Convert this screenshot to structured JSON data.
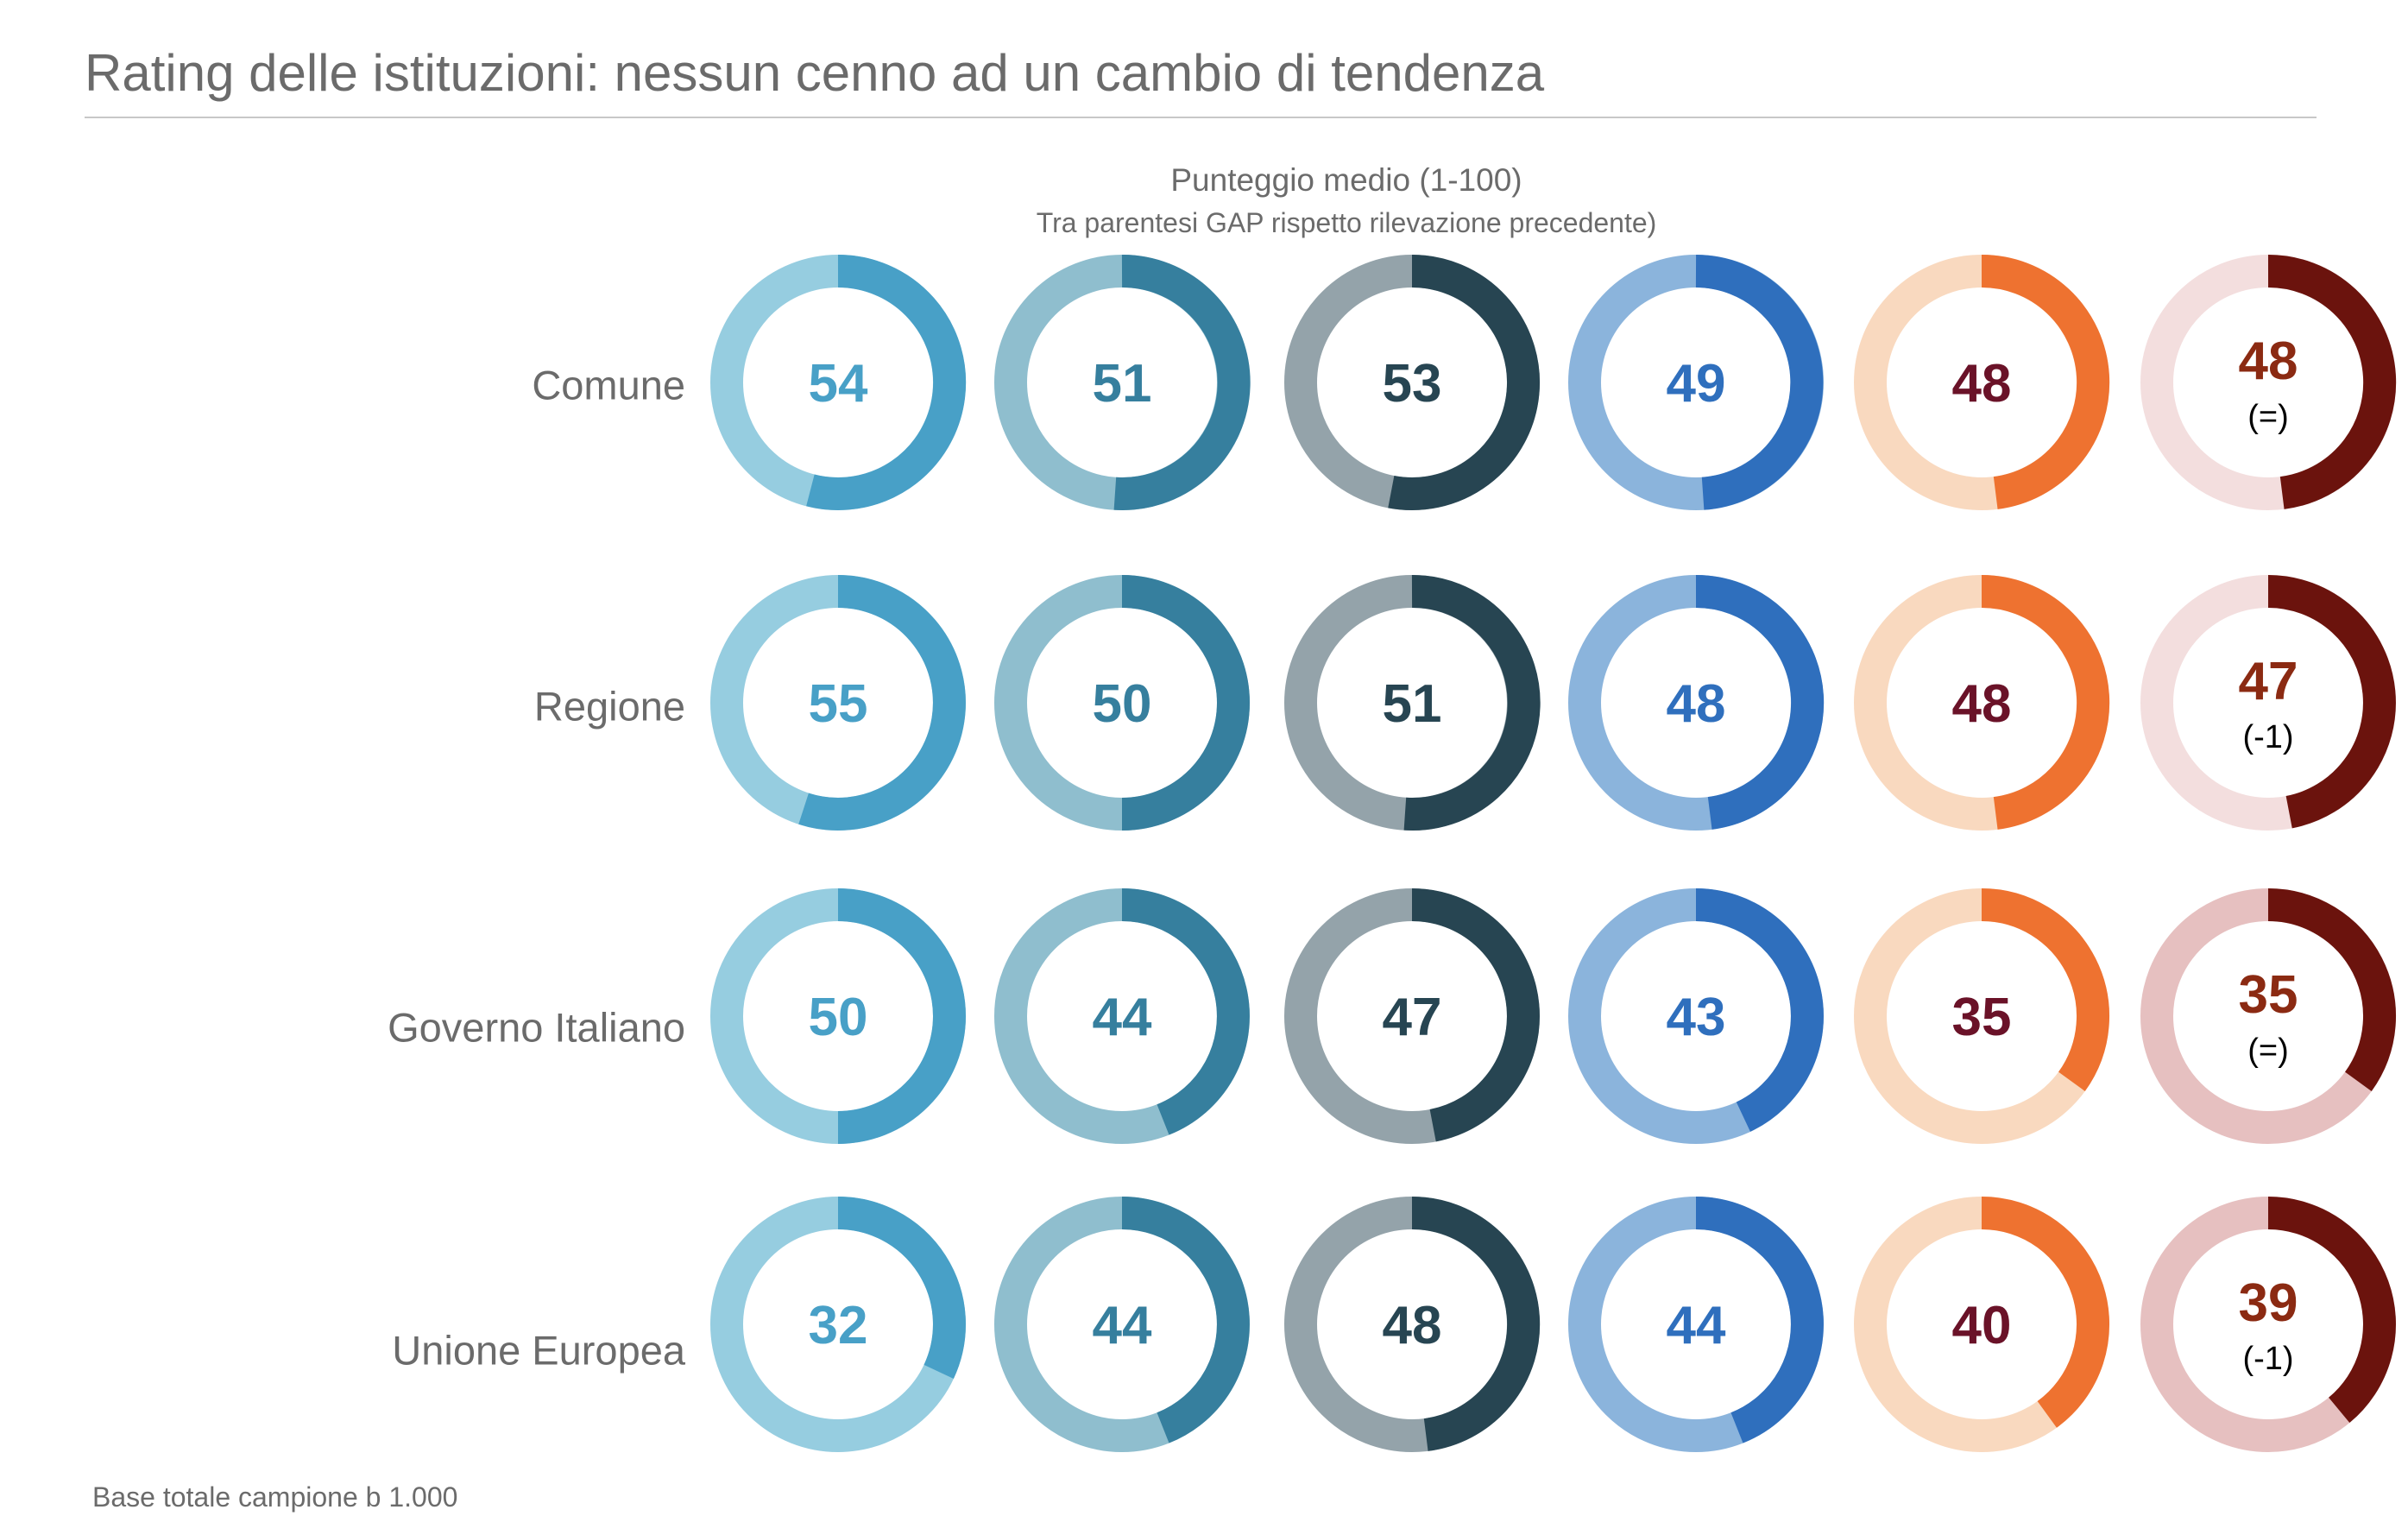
{
  "title": "Rating delle istituzioni: nessun cenno ad un cambio di tendenza",
  "subtitle": "Punteggio  medio (1-100)",
  "subtitle2": "Tra parentesi GAP rispetto rilevazione precedente)",
  "footer": "Base totale campione b 1.000",
  "chart_data": {
    "type": "donut-grid",
    "value_range": [
      1,
      100
    ],
    "rows": [
      "Comune",
      "Regione",
      "Governo Italiano",
      "Unione  Europea"
    ],
    "columns": [
      {
        "light": "#96CDE0",
        "dark": "#48A0C7",
        "text": "#48A0C7",
        "values": [
          54,
          55,
          50,
          32
        ]
      },
      {
        "light": "#8FBECE",
        "dark": "#367F9E",
        "text": "#367F9E",
        "values": [
          51,
          50,
          44,
          44
        ]
      },
      {
        "light": "#94A3AA",
        "dark": "#274552",
        "text": "#274552",
        "values": [
          53,
          51,
          47,
          48
        ]
      },
      {
        "light": "#8BB4DC",
        "dark": "#2F6FBD",
        "text": "#2F6FBD",
        "values": [
          49,
          48,
          43,
          44
        ]
      },
      {
        "light": "#F9D9BF",
        "dark": "#EE7230",
        "text": "#6A1228",
        "values": [
          48,
          48,
          35,
          40
        ]
      },
      {
        "light": [
          "#F3DEDE",
          "#F3DEDE",
          "#E6C0C0",
          "#E6C0C0"
        ],
        "dark": "#6B130D",
        "text": "#8B2A12",
        "values": [
          48,
          47,
          35,
          39
        ],
        "gaps": [
          "(=)",
          "(-1)",
          "(=)",
          "(-1)"
        ]
      }
    ]
  }
}
